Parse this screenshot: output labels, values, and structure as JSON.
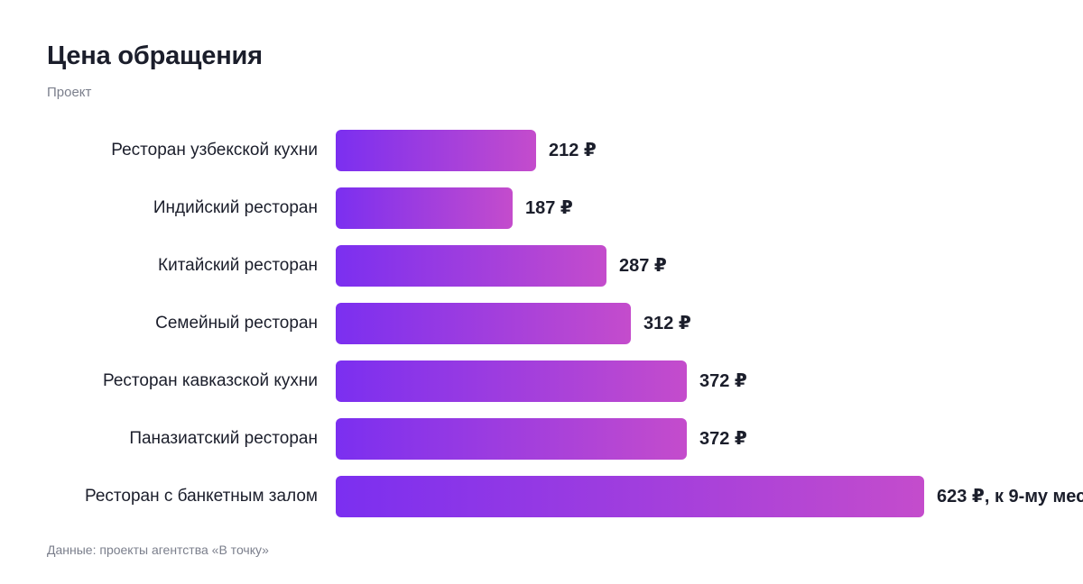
{
  "title": "Цена обращения",
  "subtitle": "Проект",
  "footnote": "Данные: проекты агентства «В точку»",
  "colors": {
    "bar_start": "#7b2ff0",
    "bar_end": "#c44ccc",
    "text": "#1b1e2b",
    "muted": "#7b7f8c"
  },
  "chart_data": {
    "type": "bar",
    "orientation": "horizontal",
    "title": "Цена обращения",
    "subtitle": "Проект",
    "xlabel": "",
    "ylabel": "",
    "xlim": [
      0,
      650
    ],
    "grid": false,
    "legend": "none",
    "categories": [
      "Ресторан узбекской кухни",
      "Индийский ресторан",
      "Китайский ресторан",
      "Семейный ресторан",
      "Ресторан кавказской кухни",
      "Паназиатский ресторан",
      "Ресторан с банкетным залом"
    ],
    "values": [
      212,
      187,
      287,
      312,
      372,
      372,
      623
    ],
    "data_labels": [
      "212 ₽",
      "187 ₽",
      "287 ₽",
      "312 ₽",
      "372 ₽",
      "372 ₽",
      "623 ₽, к 9-му мес"
    ]
  }
}
